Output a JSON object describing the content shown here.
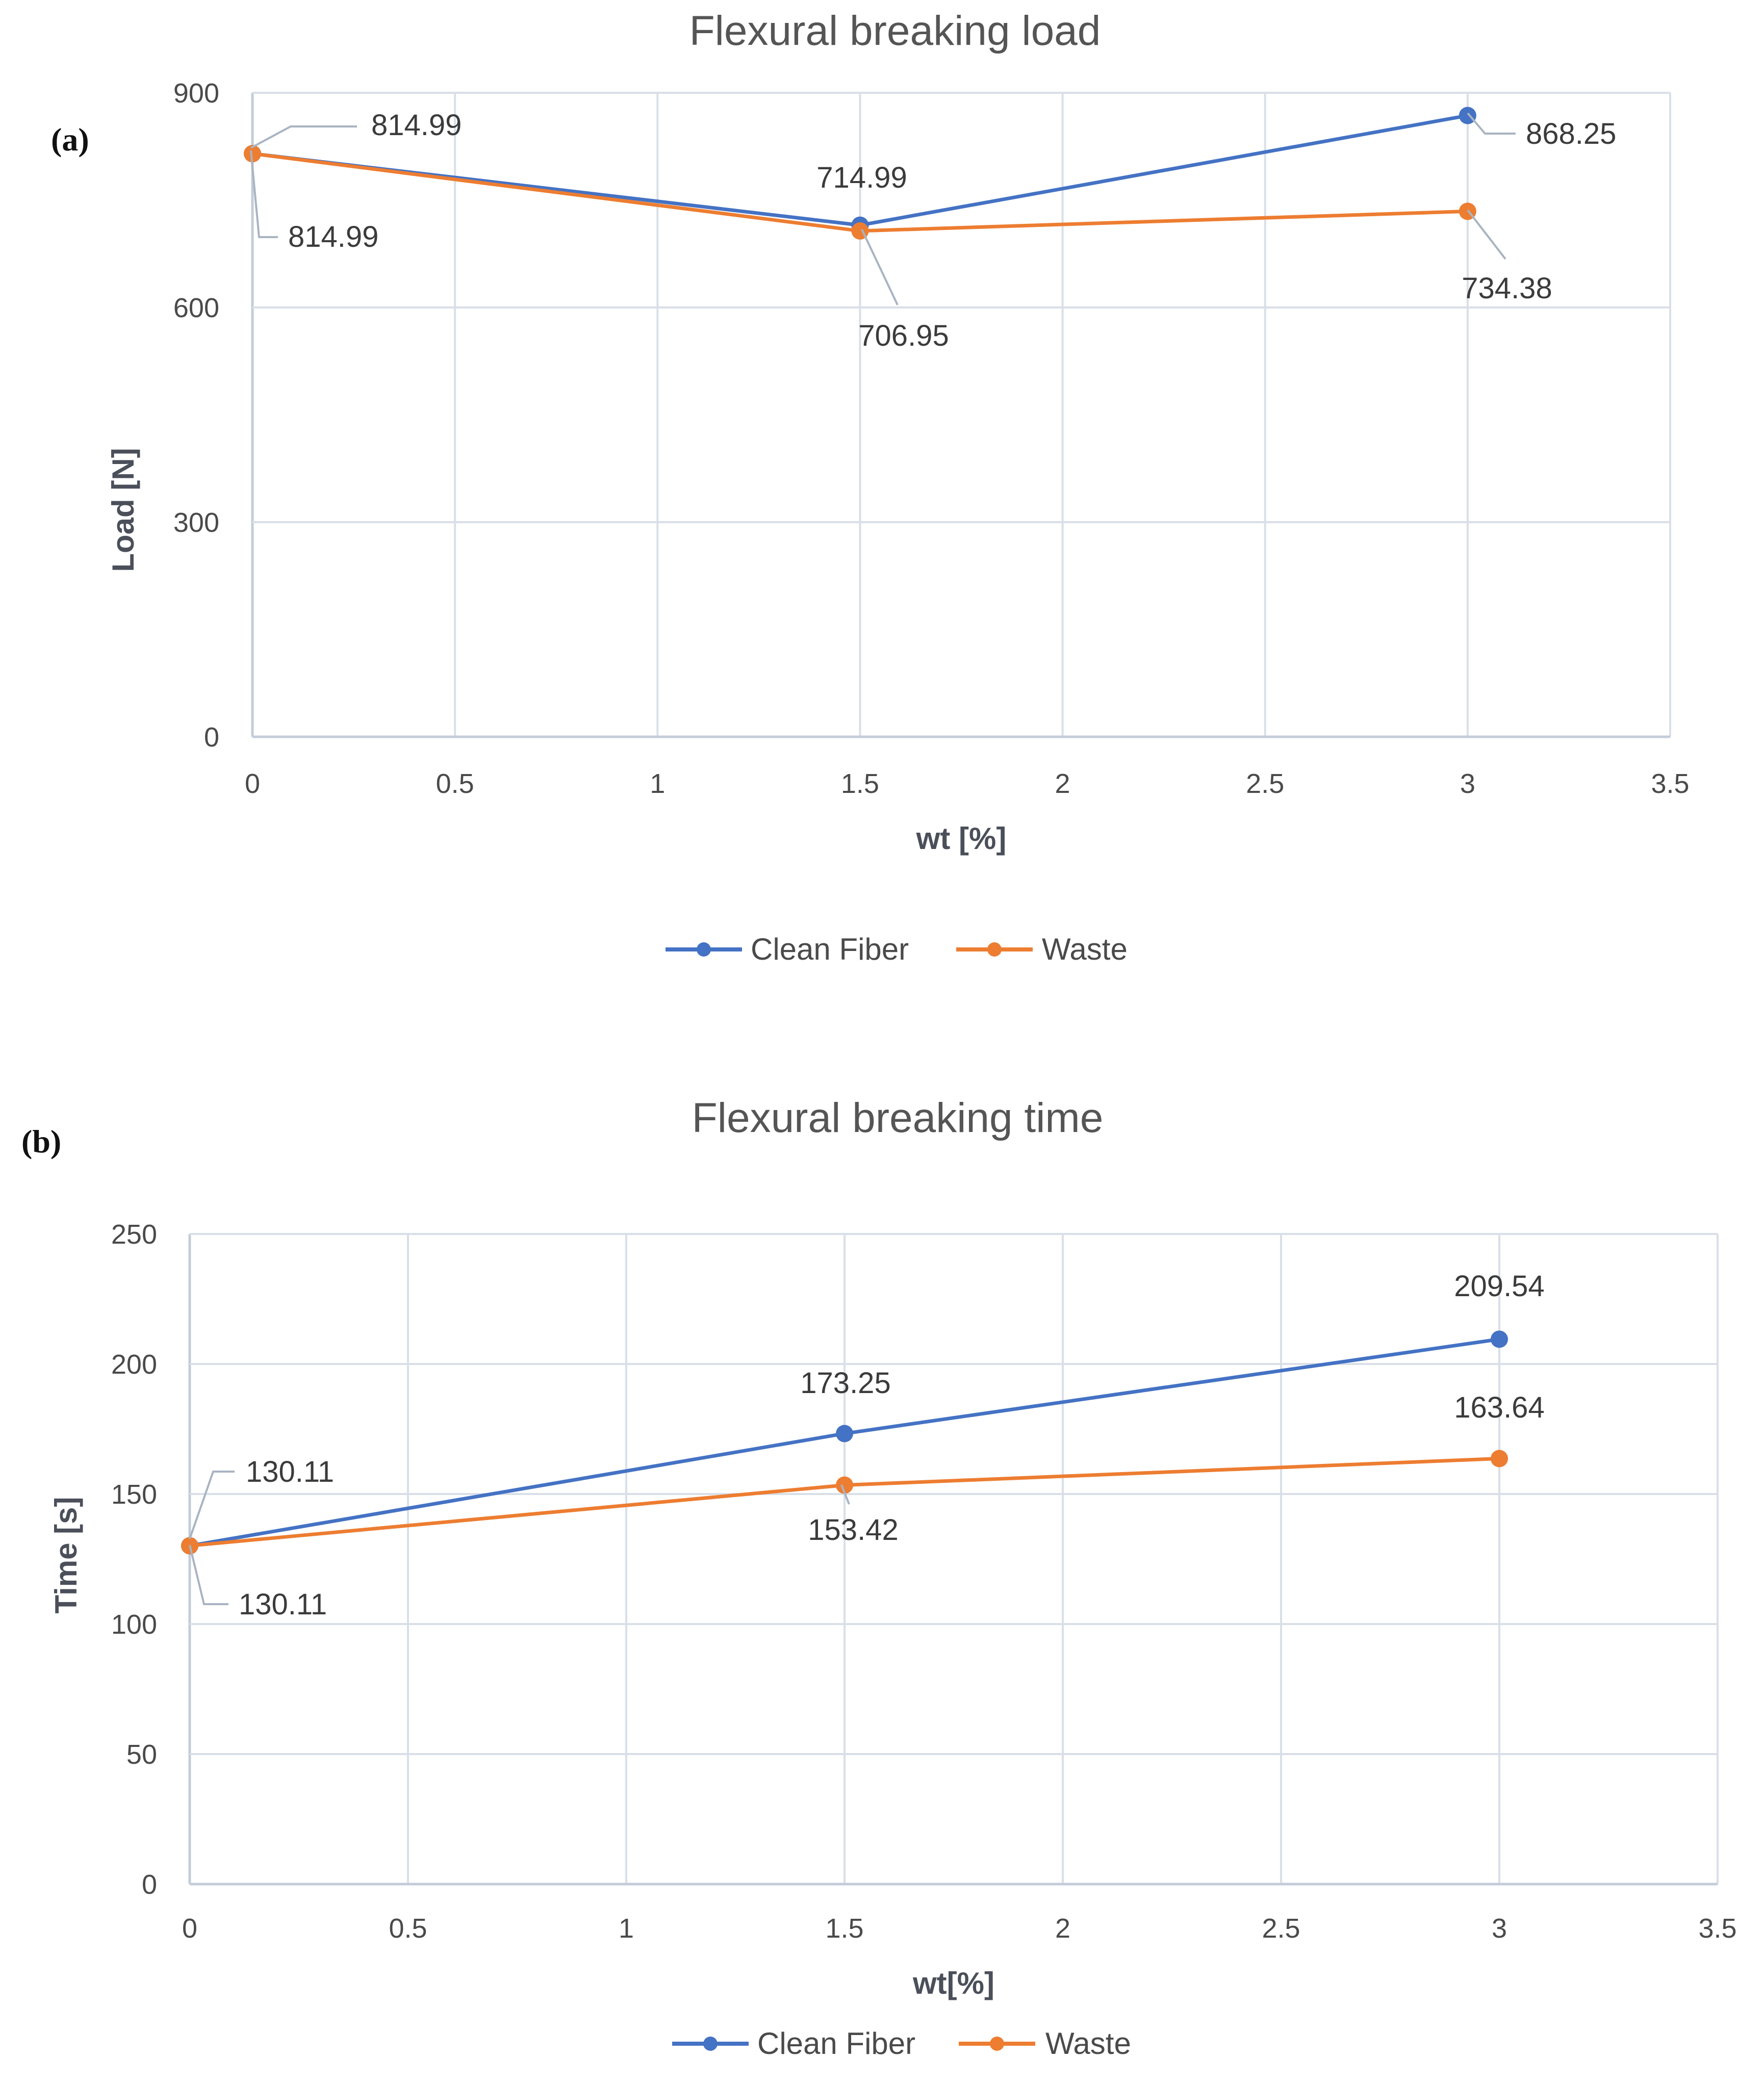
{
  "chart_data": [
    {
      "type": "line",
      "panel_label": "(a)",
      "title": "Flexural breaking load",
      "xlabel": "wt [%]",
      "ylabel": "Load [N]",
      "xlim": [
        0,
        3.5
      ],
      "ylim": [
        0,
        900
      ],
      "xticks": [
        "0",
        "0.5",
        "1",
        "1.5",
        "2",
        "2.5",
        "3",
        "3.5"
      ],
      "yticks": [
        "0",
        "300",
        "600",
        "900"
      ],
      "grid": true,
      "legend_position": "bottom",
      "series": [
        {
          "name": "Clean Fiber",
          "color": "#4472c4",
          "x": [
            0,
            1.5,
            3
          ],
          "values": [
            814.99,
            714.99,
            868.25
          ],
          "labels": [
            "814.99",
            "714.99",
            "868.25"
          ]
        },
        {
          "name": "Waste",
          "color": "#ed7d31",
          "x": [
            0,
            1.5,
            3
          ],
          "values": [
            814.99,
            706.95,
            734.38
          ],
          "labels": [
            "814.99",
            "706.95",
            "734.38"
          ]
        }
      ]
    },
    {
      "type": "line",
      "panel_label": "(b)",
      "title": "Flexural breaking time",
      "xlabel": "wt[%]",
      "ylabel": "Time [s]",
      "xlim": [
        0,
        3.5
      ],
      "ylim": [
        0,
        250
      ],
      "xticks": [
        "0",
        "0.5",
        "1",
        "1.5",
        "2",
        "2.5",
        "3",
        "3.5"
      ],
      "yticks": [
        "0",
        "50",
        "100",
        "150",
        "200",
        "250"
      ],
      "grid": true,
      "legend_position": "bottom",
      "series": [
        {
          "name": "Clean Fiber",
          "color": "#4472c4",
          "x": [
            0,
            1.5,
            3
          ],
          "values": [
            130.11,
            173.25,
            209.54
          ],
          "labels": [
            "130.11",
            "173.25",
            "209.54"
          ]
        },
        {
          "name": "Waste",
          "color": "#ed7d31",
          "x": [
            0,
            1.5,
            3
          ],
          "values": [
            130.11,
            153.42,
            163.64
          ],
          "labels": [
            "130.11",
            "153.42",
            "163.64"
          ]
        }
      ]
    }
  ]
}
